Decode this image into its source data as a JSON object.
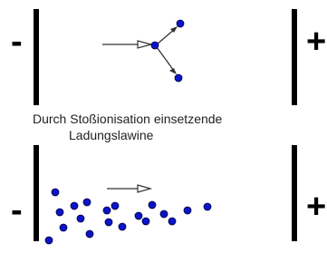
{
  "top_panel": {
    "cathode": "-",
    "anode": "+"
  },
  "caption": {
    "line1": "Durch Stoßionisation einsetzende",
    "line2": "Ladungslawine"
  },
  "bottom_panel": {
    "cathode": "-",
    "anode": "+"
  }
}
